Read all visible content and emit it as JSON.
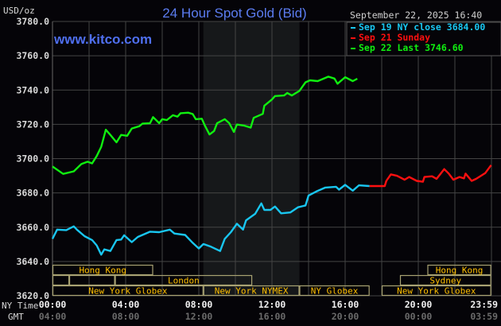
{
  "chart_data": {
    "type": "line",
    "title": "24 Hour Spot Gold (Bid)",
    "watermark": "www.kitco.com",
    "ylabel": "USD/oz",
    "ylim": [
      3620,
      3780
    ],
    "yticks": [
      "3780.0",
      "3760.0",
      "3740.0",
      "3720.0",
      "3700.0",
      "3680.0",
      "3660.0",
      "3640.0",
      "3620.0"
    ],
    "grid": true,
    "timestamp": "September 22, 2025 16:40",
    "x_axis": {
      "ny_label": "NY Time",
      "gmt_label": "GMT",
      "ny_ticks": [
        "00:00",
        "04:00",
        "08:00",
        "12:00",
        "16:00",
        "20:00",
        "23:59"
      ],
      "gmt_ticks": [
        "04:00",
        "08:00",
        "12:00",
        "16:00",
        "20:00",
        "00:00",
        "03:59"
      ]
    },
    "shaded_session": {
      "start": "08:15",
      "end": "13:30",
      "color": "#16181a"
    },
    "legend_placement": "top-right",
    "series": [
      {
        "name": "Sep 19 NY close 3684.00",
        "color": "#19c6f0",
        "points": [
          [
            "00:00",
            3653.2
          ],
          [
            "00:15",
            3658.6
          ],
          [
            "00:45",
            3658.3
          ],
          [
            "01:10",
            3660.5
          ],
          [
            "01:20",
            3658.6
          ],
          [
            "01:45",
            3654.8
          ],
          [
            "02:10",
            3652.5
          ],
          [
            "02:25",
            3649.4
          ],
          [
            "02:40",
            3644.0
          ],
          [
            "02:50",
            3647.1
          ],
          [
            "03:10",
            3646.1
          ],
          [
            "03:30",
            3652.5
          ],
          [
            "03:45",
            3652.8
          ],
          [
            "03:55",
            3655.3
          ],
          [
            "04:20",
            3651.3
          ],
          [
            "04:40",
            3654.3
          ],
          [
            "05:20",
            3657.4
          ],
          [
            "05:50",
            3657.1
          ],
          [
            "06:25",
            3658.6
          ],
          [
            "06:40",
            3656.3
          ],
          [
            "07:15",
            3655.5
          ],
          [
            "07:40",
            3650.9
          ],
          [
            "08:00",
            3647.6
          ],
          [
            "08:15",
            3650.2
          ],
          [
            "08:40",
            3648.6
          ],
          [
            "09:10",
            3646.1
          ],
          [
            "09:25",
            3653.2
          ],
          [
            "09:45",
            3657.1
          ],
          [
            "10:05",
            3662.0
          ],
          [
            "10:25",
            3658.6
          ],
          [
            "10:35",
            3664.0
          ],
          [
            "11:05",
            3667.8
          ],
          [
            "11:25",
            3673.9
          ],
          [
            "11:35",
            3670.1
          ],
          [
            "11:55",
            3670.1
          ],
          [
            "12:10",
            3672.1
          ],
          [
            "12:30",
            3668.1
          ],
          [
            "13:00",
            3668.6
          ],
          [
            "13:25",
            3671.6
          ],
          [
            "13:50",
            3672.7
          ],
          [
            "14:00",
            3678.5
          ],
          [
            "14:25",
            3680.8
          ],
          [
            "14:55",
            3683.1
          ],
          [
            "15:30",
            3683.6
          ],
          [
            "15:40",
            3681.9
          ],
          [
            "16:00",
            3684.7
          ],
          [
            "16:25",
            3681.3
          ],
          [
            "16:45",
            3684.4
          ],
          [
            "17:20",
            3684.0
          ]
        ]
      },
      {
        "name": "Sep 21 Sunday",
        "color": "#ff1010",
        "points": [
          [
            "17:20",
            3684.0
          ],
          [
            "18:10",
            3684.0
          ],
          [
            "18:15",
            3687.0
          ],
          [
            "18:30",
            3690.8
          ],
          [
            "18:50",
            3690.0
          ],
          [
            "19:15",
            3687.7
          ],
          [
            "19:30",
            3689.3
          ],
          [
            "19:55",
            3687.0
          ],
          [
            "20:15",
            3686.5
          ],
          [
            "20:20",
            3689.3
          ],
          [
            "20:45",
            3689.7
          ],
          [
            "21:00",
            3688.2
          ],
          [
            "21:25",
            3693.9
          ],
          [
            "21:40",
            3691.3
          ],
          [
            "21:55",
            3687.7
          ],
          [
            "22:15",
            3689.3
          ],
          [
            "22:30",
            3688.5
          ],
          [
            "22:35",
            3691.3
          ],
          [
            "22:55",
            3687.0
          ],
          [
            "23:10",
            3688.2
          ],
          [
            "23:40",
            3691.6
          ],
          [
            "23:59",
            3696.2
          ]
        ]
      },
      {
        "name": "Sep 22 Last 3746.60",
        "color": "#10f010",
        "points": [
          [
            "00:00",
            3695.4
          ],
          [
            "00:35",
            3691.1
          ],
          [
            "01:10",
            3692.6
          ],
          [
            "01:35",
            3696.9
          ],
          [
            "01:55",
            3698.2
          ],
          [
            "02:10",
            3697.2
          ],
          [
            "02:25",
            3701.5
          ],
          [
            "02:40",
            3706.9
          ],
          [
            "02:55",
            3716.9
          ],
          [
            "03:10",
            3713.8
          ],
          [
            "03:30",
            3709.5
          ],
          [
            "03:45",
            3713.8
          ],
          [
            "04:05",
            3713.3
          ],
          [
            "04:20",
            3717.6
          ],
          [
            "04:45",
            3718.9
          ],
          [
            "04:55",
            3720.4
          ],
          [
            "05:20",
            3720.7
          ],
          [
            "05:30",
            3724.2
          ],
          [
            "05:50",
            3720.7
          ],
          [
            "06:00",
            3723.0
          ],
          [
            "06:15",
            3722.5
          ],
          [
            "06:35",
            3725.3
          ],
          [
            "06:50",
            3724.5
          ],
          [
            "07:00",
            3726.5
          ],
          [
            "07:25",
            3726.8
          ],
          [
            "07:40",
            3726.0
          ],
          [
            "07:50",
            3723.0
          ],
          [
            "08:10",
            3723.3
          ],
          [
            "08:20",
            3719.2
          ],
          [
            "08:35",
            3714.1
          ],
          [
            "08:50",
            3716.1
          ],
          [
            "09:00",
            3720.7
          ],
          [
            "09:25",
            3723.0
          ],
          [
            "09:40",
            3720.7
          ],
          [
            "09:55",
            3715.6
          ],
          [
            "10:05",
            3719.9
          ],
          [
            "10:30",
            3719.2
          ],
          [
            "10:50",
            3718.1
          ],
          [
            "11:00",
            3723.8
          ],
          [
            "11:30",
            3726.1
          ],
          [
            "11:35",
            3730.9
          ],
          [
            "12:00",
            3734.5
          ],
          [
            "12:10",
            3736.5
          ],
          [
            "12:40",
            3736.8
          ],
          [
            "12:50",
            3738.3
          ],
          [
            "13:05",
            3736.8
          ],
          [
            "13:30",
            3739.5
          ],
          [
            "13:50",
            3744.5
          ],
          [
            "14:05",
            3745.7
          ],
          [
            "14:30",
            3745.2
          ],
          [
            "15:05",
            3747.8
          ],
          [
            "15:25",
            3746.7
          ],
          [
            "15:35",
            3743.7
          ],
          [
            "16:00",
            3747.5
          ],
          [
            "16:25",
            3745.2
          ],
          [
            "16:40",
            3746.6
          ]
        ]
      }
    ],
    "sessions": [
      {
        "label": "Hong Kong",
        "row": 0,
        "start": "00:00",
        "end": "05:30"
      },
      {
        "label": "Hong Kong",
        "row": 0,
        "start": "20:30",
        "end": "23:59"
      },
      {
        "label": "",
        "row": 1,
        "start": "00:00",
        "end": "00:55"
      },
      {
        "label": "",
        "row": 1,
        "start": "00:55",
        "end": "03:25"
      },
      {
        "label": "London",
        "row": 1,
        "start": "03:25",
        "end": "10:55"
      },
      {
        "label": "Sydney",
        "row": 1,
        "start": "19:00",
        "end": "23:59"
      },
      {
        "label": "New York Globex",
        "row": 2,
        "start": "00:00",
        "end": "08:15"
      },
      {
        "label": "New York NYMEX",
        "row": 2,
        "start": "08:15",
        "end": "13:30"
      },
      {
        "label": "NY Globex",
        "row": 2,
        "start": "13:30",
        "end": "17:20"
      },
      {
        "label": "New York Globex",
        "row": 2,
        "start": "18:00",
        "end": "23:59"
      }
    ]
  }
}
